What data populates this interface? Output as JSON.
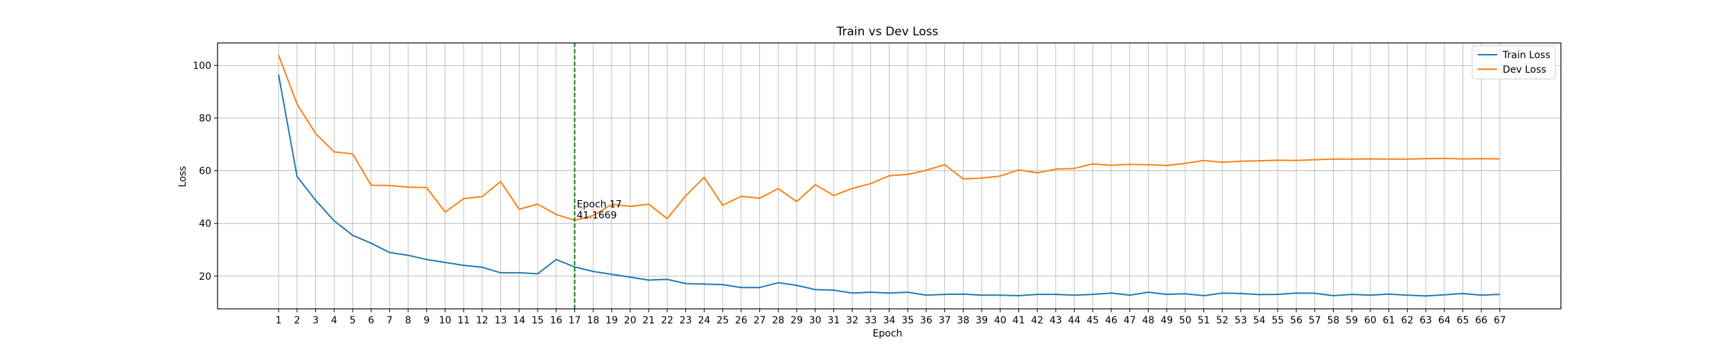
{
  "chart_data": {
    "type": "line",
    "title": "Train vs Dev Loss",
    "xlabel": "Epoch",
    "ylabel": "Loss",
    "x": [
      1,
      2,
      3,
      4,
      5,
      6,
      7,
      8,
      9,
      10,
      11,
      12,
      13,
      14,
      15,
      16,
      17,
      18,
      19,
      20,
      21,
      22,
      23,
      24,
      25,
      26,
      27,
      28,
      29,
      30,
      31,
      32,
      33,
      34,
      35,
      36,
      37,
      38,
      39,
      40,
      41,
      42,
      43,
      44,
      45,
      46,
      47,
      48,
      49,
      50,
      51,
      52,
      53,
      54,
      55,
      56,
      57,
      58,
      59,
      60,
      61,
      62,
      63,
      64,
      65,
      66,
      67
    ],
    "xlim": [
      -2.3,
      70.3
    ],
    "ylim": [
      7.6,
      108.5
    ],
    "yticks": [
      20,
      40,
      60,
      80,
      100
    ],
    "grid": true,
    "legend_position": "upper-right",
    "series": [
      {
        "name": "Train Loss",
        "color": "#1f77b4",
        "values": [
          96.5,
          57.8,
          48.8,
          41.0,
          35.5,
          32.5,
          29.0,
          27.9,
          26.3,
          25.2,
          24.1,
          23.4,
          21.3,
          21.3,
          20.9,
          26.3,
          23.5,
          21.8,
          20.7,
          19.6,
          18.5,
          18.8,
          17.2,
          17.0,
          16.8,
          15.7,
          15.7,
          17.5,
          16.5,
          14.9,
          14.7,
          13.6,
          13.9,
          13.6,
          13.9,
          12.8,
          13.1,
          13.2,
          12.8,
          12.8,
          12.6,
          13.1,
          13.1,
          12.8,
          13.1,
          13.6,
          12.8,
          13.9,
          13.1,
          13.3,
          12.6,
          13.6,
          13.4,
          13.0,
          13.1,
          13.6,
          13.5,
          12.6,
          13.1,
          12.8,
          13.2,
          12.8,
          12.5,
          12.9,
          13.4,
          12.8,
          13.1
        ]
      },
      {
        "name": "Dev Loss",
        "color": "#ff7f0e",
        "values": [
          103.9,
          85.3,
          74.1,
          67.2,
          66.4,
          54.5,
          54.4,
          53.8,
          53.6,
          44.3,
          49.4,
          50.2,
          55.9,
          45.4,
          47.3,
          43.4,
          41.2,
          43.0,
          47.2,
          46.5,
          47.3,
          41.8,
          50.5,
          57.5,
          46.9,
          50.3,
          49.6,
          53.2,
          48.3,
          54.7,
          50.6,
          53.3,
          55.1,
          58.1,
          58.6,
          60.2,
          62.3,
          56.9,
          57.2,
          58.0,
          60.3,
          59.2,
          60.6,
          60.9,
          62.6,
          62.1,
          62.4,
          62.3,
          62.0,
          62.8,
          63.9,
          63.2,
          63.6,
          63.8,
          64.0,
          63.9,
          64.2,
          64.4,
          64.4,
          64.5,
          64.4,
          64.4,
          64.6,
          64.7,
          64.5,
          64.6,
          64.5
        ]
      }
    ],
    "annotation": {
      "epoch": 17,
      "line_color": "#008000",
      "label_line1": "Epoch 17",
      "label_line2": "41.1669",
      "value": 41.1669
    }
  }
}
